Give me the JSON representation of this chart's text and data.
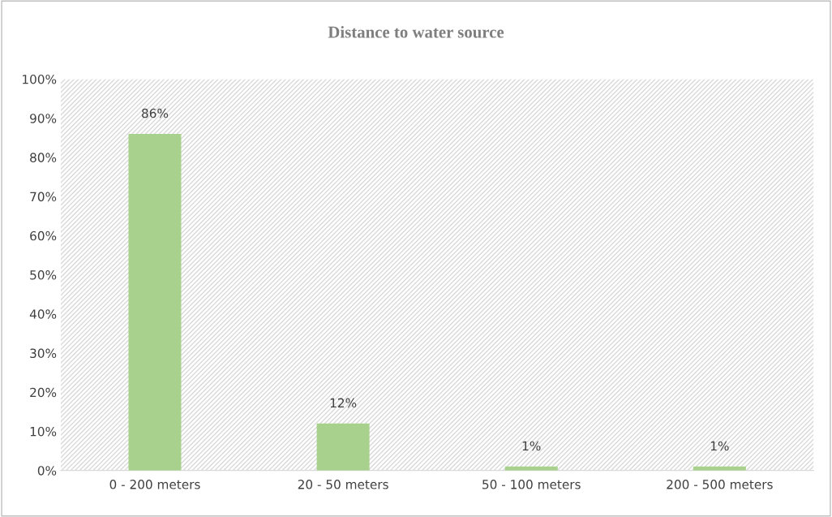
{
  "chart_data": {
    "type": "bar",
    "title": "Distance to water source",
    "categories": [
      "0 - 200 meters",
      "20 - 50 meters",
      "50 - 100 meters",
      "200 - 500 meters"
    ],
    "values": [
      86,
      12,
      1,
      1
    ],
    "color": "#a9d18e",
    "value_labels": [
      "86%",
      "12%",
      "1%",
      "1%"
    ],
    "ylim": [
      0,
      100
    ],
    "yticks": [
      {
        "value": 0,
        "label": "0%"
      },
      {
        "value": 10,
        "label": "10%"
      },
      {
        "value": 20,
        "label": "20%"
      },
      {
        "value": 30,
        "label": "30%"
      },
      {
        "value": 40,
        "label": "40%"
      },
      {
        "value": 50,
        "label": "50%"
      },
      {
        "value": 60,
        "label": "60%"
      },
      {
        "value": 70,
        "label": "70%"
      },
      {
        "value": 80,
        "label": "80%"
      },
      {
        "value": 90,
        "label": "90%"
      },
      {
        "value": 100,
        "label": "100%"
      }
    ],
    "grid": false
  }
}
